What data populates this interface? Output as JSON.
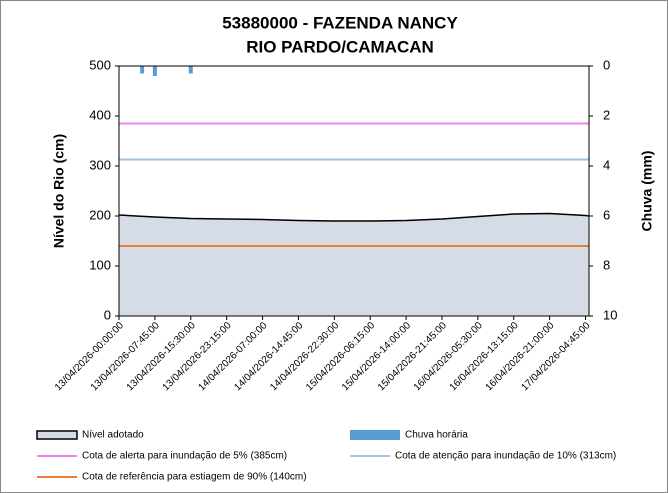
{
  "chart_data": {
    "type": "combo",
    "title": [
      "53880000 - FAZENDA NANCY",
      "RIO PARDO/CAMACAN"
    ],
    "ylabel": "Nível do Rio (cm)",
    "y2label": "Chuva (mm)",
    "xlim": [
      0,
      101.5
    ],
    "xticks": [
      {
        "value": 0,
        "label": "13/04/2026-00:00:00"
      },
      {
        "value": 7.75,
        "label": "13/04/2026-07:45:00"
      },
      {
        "value": 15.5,
        "label": "13/04/2026-15:30:00"
      },
      {
        "value": 23.25,
        "label": "13/04/2026-23:15:00"
      },
      {
        "value": 31,
        "label": "14/04/2026-07:00:00"
      },
      {
        "value": 38.75,
        "label": "14/04/2026-14:45:00"
      },
      {
        "value": 46.5,
        "label": "14/04/2026-22:30:00"
      },
      {
        "value": 54.25,
        "label": "15/04/2026-06:15:00"
      },
      {
        "value": 62,
        "label": "15/04/2026-14:00:00"
      },
      {
        "value": 69.75,
        "label": "15/04/2026-21:45:00"
      },
      {
        "value": 77.5,
        "label": "16/04/2026-05:30:00"
      },
      {
        "value": 85.25,
        "label": "16/04/2026-13:15:00"
      },
      {
        "value": 93,
        "label": "16/04/2026-21:00:00"
      },
      {
        "value": 100.75,
        "label": "17/04/2026-04:45:00"
      }
    ],
    "ylim": [
      0,
      500
    ],
    "yticks": [
      0,
      100,
      200,
      300,
      400,
      500
    ],
    "y2lim": [
      0,
      10
    ],
    "y2ticks": [
      0,
      2,
      4,
      6,
      8,
      10
    ],
    "y2_reversed": true,
    "series": [
      {
        "name": "Nível adotado",
        "kind": "area",
        "color": "#d6dce5",
        "stroke": "#000000",
        "x": [
          0,
          7.75,
          15.5,
          23.25,
          31,
          38.75,
          46.5,
          54.25,
          62,
          69.75,
          77.5,
          85.25,
          93,
          100.75,
          101.5
        ],
        "values": [
          202,
          198,
          195,
          194,
          193,
          191,
          190,
          190,
          191,
          194,
          199,
          204,
          205,
          201,
          200
        ]
      },
      {
        "name": "Chuva horária",
        "kind": "bar",
        "axis": "y2",
        "color": "#5b9bd5",
        "x": [
          5,
          7.75,
          15.5
        ],
        "values": [
          0.3,
          0.4,
          0.3
        ]
      },
      {
        "name": "Cota de alerta para inundação de 5% (385cm)",
        "kind": "hline",
        "color": "#ee82ee",
        "value": 385
      },
      {
        "name": "Cota de atenção para inundação de 10% (313cm)",
        "kind": "hline",
        "color": "#9dc3e6",
        "value": 313
      },
      {
        "name": "Cota de referência para estiagem de 90% (140cm)",
        "kind": "hline",
        "color": "#ed7d31",
        "value": 140
      }
    ]
  }
}
